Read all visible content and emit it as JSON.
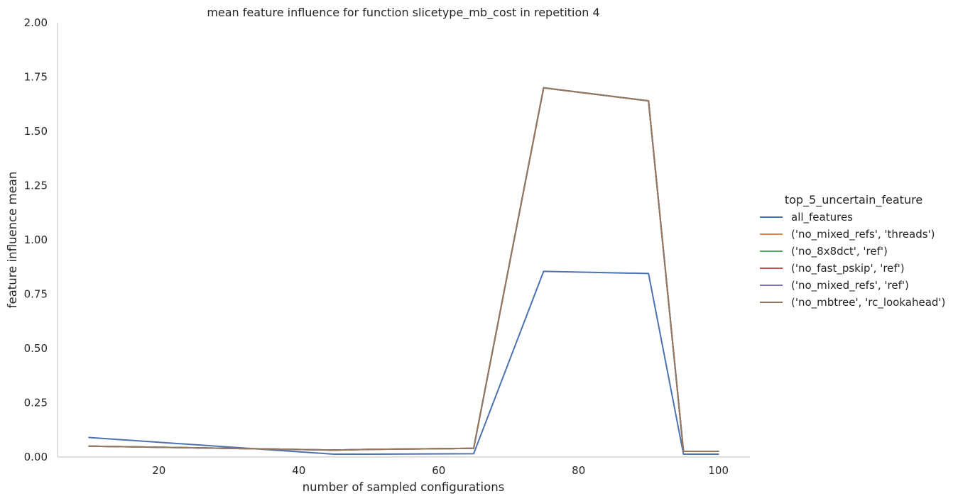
{
  "chart_data": {
    "type": "line",
    "title": "mean feature influence for function slicetype_mb_cost in repetition 4",
    "xlabel": "number of sampled configurations",
    "ylabel": "feature influence mean",
    "xlim": [
      5.5,
      104.5
    ],
    "ylim": [
      0,
      2.0
    ],
    "xticks": [
      20,
      40,
      60,
      80,
      100
    ],
    "yticks": [
      0.0,
      0.25,
      0.5,
      0.75,
      1.0,
      1.25,
      1.5,
      1.75,
      2.0
    ],
    "xtick_labels": [
      "20",
      "40",
      "60",
      "80",
      "100"
    ],
    "ytick_labels": [
      "0.00",
      "0.25",
      "0.50",
      "0.75",
      "1.00",
      "1.25",
      "1.50",
      "1.75",
      "2.00"
    ],
    "grid": false,
    "legend": {
      "title": "top_5_uncertain_feature",
      "placement": "right"
    },
    "x": [
      10,
      45,
      50,
      65,
      75,
      90,
      95,
      100
    ],
    "series": [
      {
        "name": "all_features",
        "color": "#4c72b0",
        "values": [
          0.09,
          0.013,
          0.013,
          0.015,
          0.855,
          0.845,
          0.013,
          0.013
        ]
      },
      {
        "name": "('no_mixed_refs', 'threads')",
        "color": "#dd8452",
        "values": [
          0.05,
          0.032,
          0.035,
          0.04,
          1.7,
          1.64,
          0.026,
          0.026
        ]
      },
      {
        "name": "('no_8x8dct', 'ref')",
        "color": "#55a868",
        "values": [
          0.05,
          0.032,
          0.035,
          0.04,
          1.7,
          1.64,
          0.026,
          0.026
        ]
      },
      {
        "name": "('no_fast_pskip', 'ref')",
        "color": "#c44e52",
        "values": [
          0.05,
          0.032,
          0.035,
          0.04,
          1.7,
          1.64,
          0.026,
          0.026
        ]
      },
      {
        "name": "('no_mixed_refs', 'ref')",
        "color": "#8172b3",
        "values": [
          0.05,
          0.032,
          0.035,
          0.04,
          1.7,
          1.64,
          0.026,
          0.026
        ]
      },
      {
        "name": "('no_mbtree', 'rc_lookahead')",
        "color": "#937860",
        "values": [
          0.05,
          0.032,
          0.035,
          0.04,
          1.7,
          1.64,
          0.026,
          0.026
        ]
      }
    ]
  }
}
